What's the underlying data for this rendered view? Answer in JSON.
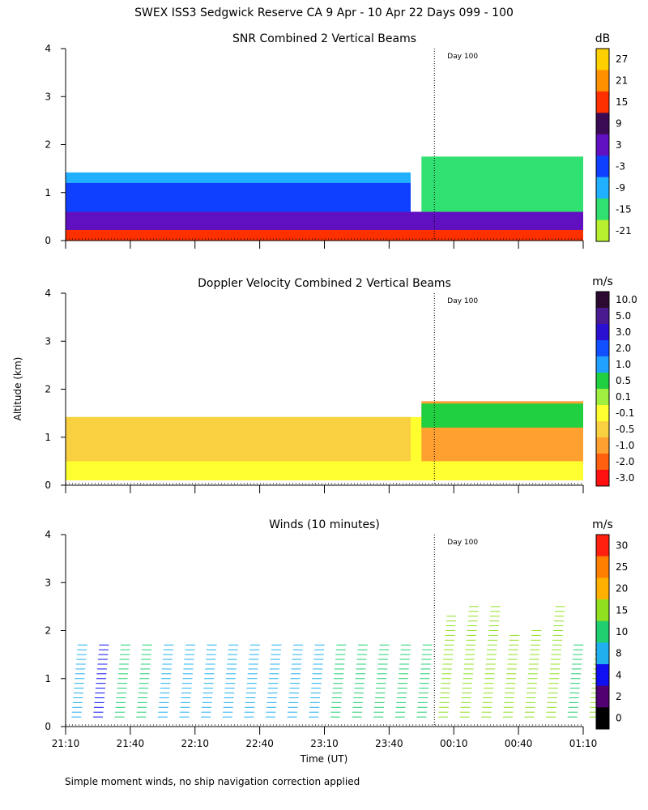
{
  "title": "SWEX ISS3 Sedgwick Reserve CA   9 Apr - 10 Apr 22 Days 099 - 100",
  "footnote": "Simple moment winds, no ship navigation correction applied",
  "chart_data": [
    {
      "type": "heatmap",
      "title": "SNR Combined 2 Vertical Beams",
      "ylabel": "",
      "xlabel": "",
      "ylim": [
        0,
        4
      ],
      "y_ticks": [
        "0",
        "1",
        "2",
        "3",
        "4"
      ],
      "x_ticks": [
        "21:10",
        "21:40",
        "22:10",
        "22:40",
        "23:10",
        "23:40",
        "00:10",
        "00:40",
        "01:10"
      ],
      "show_x_tick_labels": false,
      "marker": {
        "label": "Day 100",
        "time": "00:01"
      },
      "colorbar": {
        "unit": "dB",
        "labels": [
          "27",
          "21",
          "15",
          "9",
          "3",
          "-3",
          "-9",
          "-15",
          "-21"
        ],
        "colors": [
          "#ffd000",
          "#ff9000",
          "#ff3000",
          "#3a0a55",
          "#6010c0",
          "#1040ff",
          "#20b0ff",
          "#30e070",
          "#b8f030"
        ]
      },
      "layers": [
        {
          "label": "-9",
          "from": "21:10",
          "to": "23:50",
          "y": [
            0.0,
            1.42
          ]
        },
        {
          "label": "-3",
          "from": "21:10",
          "to": "23:50",
          "y": [
            0.6,
            1.2
          ]
        },
        {
          "label": "3",
          "from": "21:10",
          "to": "01:10",
          "y": [
            0.1,
            0.6
          ]
        },
        {
          "label": "15",
          "from": "21:10",
          "to": "01:10",
          "y": [
            0.0,
            0.22
          ]
        },
        {
          "label": "-15",
          "from": "23:55",
          "to": "01:10",
          "y": [
            0.6,
            1.75
          ]
        }
      ]
    },
    {
      "type": "heatmap",
      "title": "Doppler Velocity Combined 2 Vertical Beams",
      "ylabel": "Altitude (km)",
      "xlabel": "",
      "ylim": [
        0,
        4
      ],
      "y_ticks": [
        "0",
        "1",
        "2",
        "3",
        "4"
      ],
      "x_ticks": [
        "21:10",
        "21:40",
        "22:10",
        "22:40",
        "23:10",
        "23:40",
        "00:10",
        "00:40",
        "01:10"
      ],
      "show_x_tick_labels": false,
      "marker": {
        "label": "Day 100",
        "time": "00:01"
      },
      "colorbar": {
        "unit": "m/s",
        "labels": [
          "10.0",
          "5.0",
          "3.0",
          "2.0",
          "1.0",
          "0.5",
          "0.1",
          "-0.1",
          "-0.5",
          "-1.0",
          "-2.0",
          "-3.0"
        ],
        "colors": [
          "#2a0a30",
          "#4a1a90",
          "#2a10d0",
          "#1050ff",
          "#20a0ff",
          "#20d040",
          "#a0ee40",
          "#ffff30",
          "#f8d040",
          "#ffa030",
          "#ff6010",
          "#ff1010"
        ]
      },
      "layers": [
        {
          "label": "-0.1",
          "from": "21:10",
          "to": "01:10",
          "y": [
            0.1,
            1.42
          ]
        },
        {
          "label": "-0.5",
          "from": "21:10",
          "to": "23:50",
          "y": [
            0.5,
            1.42
          ]
        },
        {
          "label": "-1.0",
          "from": "23:55",
          "to": "01:10",
          "y": [
            0.5,
            1.75
          ]
        },
        {
          "label": "0.5",
          "from": "23:55",
          "to": "01:10",
          "y": [
            1.2,
            1.7
          ]
        }
      ]
    },
    {
      "type": "scatter",
      "title": "Winds (10 minutes)",
      "ylabel": "",
      "xlabel": "Time (UT)",
      "ylim": [
        0,
        4
      ],
      "y_ticks": [
        "0",
        "1",
        "2",
        "3",
        "4"
      ],
      "x_ticks": [
        "21:10",
        "21:40",
        "22:10",
        "22:40",
        "23:10",
        "23:40",
        "00:10",
        "00:40",
        "01:10"
      ],
      "show_x_tick_labels": true,
      "marker": {
        "label": "Day 100",
        "time": "00:01"
      },
      "colorbar": {
        "unit": "m/s",
        "labels": [
          "30",
          "25",
          "20",
          "15",
          "10",
          "8",
          "4",
          "2",
          "0"
        ],
        "colors": [
          "#ff2010",
          "#ff8000",
          "#ffb000",
          "#90e020",
          "#20d070",
          "#20b0f0",
          "#1010f0",
          "#500070",
          "#000000"
        ]
      },
      "profiles": [
        {
          "time": "21:15",
          "top_km": 1.7,
          "speed_m_s": 8
        },
        {
          "time": "21:25",
          "top_km": 1.7,
          "speed_m_s": 4
        },
        {
          "time": "21:35",
          "top_km": 1.7,
          "speed_m_s": 10
        },
        {
          "time": "21:45",
          "top_km": 1.7,
          "speed_m_s": 10
        },
        {
          "time": "21:55",
          "top_km": 1.7,
          "speed_m_s": 8
        },
        {
          "time": "22:05",
          "top_km": 1.7,
          "speed_m_s": 8
        },
        {
          "time": "22:15",
          "top_km": 1.7,
          "speed_m_s": 8
        },
        {
          "time": "22:25",
          "top_km": 1.7,
          "speed_m_s": 8
        },
        {
          "time": "22:35",
          "top_km": 1.7,
          "speed_m_s": 8
        },
        {
          "time": "22:45",
          "top_km": 1.7,
          "speed_m_s": 8
        },
        {
          "time": "22:55",
          "top_km": 1.7,
          "speed_m_s": 8
        },
        {
          "time": "23:05",
          "top_km": 1.7,
          "speed_m_s": 8
        },
        {
          "time": "23:15",
          "top_km": 1.7,
          "speed_m_s": 10
        },
        {
          "time": "23:25",
          "top_km": 1.7,
          "speed_m_s": 10
        },
        {
          "time": "23:35",
          "top_km": 1.7,
          "speed_m_s": 10
        },
        {
          "time": "23:45",
          "top_km": 1.7,
          "speed_m_s": 10
        },
        {
          "time": "23:55",
          "top_km": 1.7,
          "speed_m_s": 10
        },
        {
          "time": "00:05",
          "top_km": 2.3,
          "speed_m_s": 15
        },
        {
          "time": "00:15",
          "top_km": 2.5,
          "speed_m_s": 15
        },
        {
          "time": "00:25",
          "top_km": 2.5,
          "speed_m_s": 15
        },
        {
          "time": "00:35",
          "top_km": 1.9,
          "speed_m_s": 15
        },
        {
          "time": "00:45",
          "top_km": 2.0,
          "speed_m_s": 15
        },
        {
          "time": "00:55",
          "top_km": 2.5,
          "speed_m_s": 15
        },
        {
          "time": "01:05",
          "top_km": 1.7,
          "speed_m_s": 10
        },
        {
          "time": "01:15",
          "top_km": 2.1,
          "speed_m_s": 15
        }
      ]
    }
  ]
}
